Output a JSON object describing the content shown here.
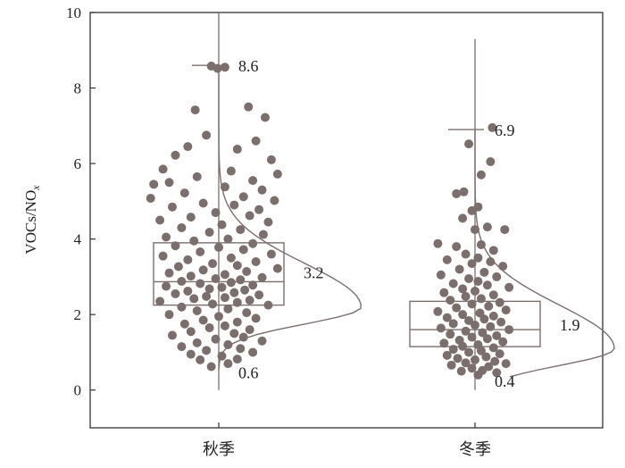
{
  "chart_data": {
    "type": "box",
    "ylabel": "VOCs/NO",
    "ylabel_sub": "x",
    "ylim": [
      -1,
      10
    ],
    "yticks": [
      "0",
      "2",
      "4",
      "6",
      "8",
      "10"
    ],
    "grid": false,
    "legend": "none",
    "point_color": "#7b6f6e",
    "line_color": "#7b6f6e",
    "categories": [
      "秋季",
      "冬季"
    ],
    "series": [
      {
        "category": "秋季",
        "q1": 2.25,
        "median": 2.87,
        "q3": 3.9,
        "whisker_low": 0.0,
        "whisker_high": 10.0,
        "max_cap": 8.6,
        "max_label": "8.6",
        "min_label": "0.6",
        "mean_label": "3.2",
        "density": {
          "peak_y": 2.2,
          "peak_extent": 2.3,
          "y_from": 0.55,
          "y_to": 8.6
        },
        "points": [
          {
            "dx": -0.12,
            "y": 8.58
          },
          {
            "dx": 0.1,
            "y": 8.55
          },
          {
            "dx": -0.02,
            "y": 8.52
          },
          {
            "dx": 0.48,
            "y": 7.5
          },
          {
            "dx": -0.38,
            "y": 7.42
          },
          {
            "dx": 0.75,
            "y": 7.22
          },
          {
            "dx": -0.2,
            "y": 6.75
          },
          {
            "dx": 0.6,
            "y": 6.6
          },
          {
            "dx": -0.5,
            "y": 6.45
          },
          {
            "dx": 0.3,
            "y": 6.38
          },
          {
            "dx": -0.7,
            "y": 6.22
          },
          {
            "dx": 0.85,
            "y": 6.1
          },
          {
            "dx": -0.9,
            "y": 5.85
          },
          {
            "dx": 0.2,
            "y": 5.8
          },
          {
            "dx": 0.95,
            "y": 5.72
          },
          {
            "dx": -0.35,
            "y": 5.65
          },
          {
            "dx": 0.55,
            "y": 5.55
          },
          {
            "dx": -0.8,
            "y": 5.5
          },
          {
            "dx": -1.05,
            "y": 5.45
          },
          {
            "dx": 0.1,
            "y": 5.38
          },
          {
            "dx": 0.7,
            "y": 5.3
          },
          {
            "dx": -0.55,
            "y": 5.22
          },
          {
            "dx": 0.4,
            "y": 5.12
          },
          {
            "dx": -1.1,
            "y": 5.08
          },
          {
            "dx": 0.9,
            "y": 5.02
          },
          {
            "dx": -0.25,
            "y": 4.95
          },
          {
            "dx": 0.25,
            "y": 4.9
          },
          {
            "dx": -0.75,
            "y": 4.85
          },
          {
            "dx": 0.65,
            "y": 4.78
          },
          {
            "dx": -0.05,
            "y": 4.7
          },
          {
            "dx": 0.5,
            "y": 4.62
          },
          {
            "dx": -0.45,
            "y": 4.58
          },
          {
            "dx": -0.95,
            "y": 4.5
          },
          {
            "dx": 0.8,
            "y": 4.45
          },
          {
            "dx": 0.05,
            "y": 4.38
          },
          {
            "dx": -0.6,
            "y": 4.3
          },
          {
            "dx": 0.35,
            "y": 4.25
          },
          {
            "dx": -0.15,
            "y": 4.18
          },
          {
            "dx": 0.72,
            "y": 4.12
          },
          {
            "dx": -0.85,
            "y": 4.05
          },
          {
            "dx": 0.15,
            "y": 4.0
          },
          {
            "dx": -0.4,
            "y": 3.95
          },
          {
            "dx": 0.55,
            "y": 3.88
          },
          {
            "dx": -0.7,
            "y": 3.82
          },
          {
            "dx": 0.0,
            "y": 3.78
          },
          {
            "dx": 0.4,
            "y": 3.72
          },
          {
            "dx": -0.3,
            "y": 3.66
          },
          {
            "dx": 0.85,
            "y": 3.6
          },
          {
            "dx": -0.9,
            "y": 3.55
          },
          {
            "dx": 0.2,
            "y": 3.5
          },
          {
            "dx": -0.5,
            "y": 3.45
          },
          {
            "dx": 0.6,
            "y": 3.4
          },
          {
            "dx": -0.1,
            "y": 3.35
          },
          {
            "dx": 0.3,
            "y": 3.3
          },
          {
            "dx": -0.65,
            "y": 3.27
          },
          {
            "dx": 0.95,
            "y": 3.22
          },
          {
            "dx": -0.25,
            "y": 3.18
          },
          {
            "dx": 0.45,
            "y": 3.14
          },
          {
            "dx": -0.8,
            "y": 3.1
          },
          {
            "dx": 0.1,
            "y": 3.06
          },
          {
            "dx": -0.45,
            "y": 3.02
          },
          {
            "dx": 0.7,
            "y": 2.98
          },
          {
            "dx": -0.05,
            "y": 2.95
          },
          {
            "dx": 0.35,
            "y": 2.92
          },
          {
            "dx": -0.6,
            "y": 2.88
          },
          {
            "dx": 0.2,
            "y": 2.85
          },
          {
            "dx": -0.3,
            "y": 2.82
          },
          {
            "dx": 0.55,
            "y": 2.78
          },
          {
            "dx": -0.85,
            "y": 2.75
          },
          {
            "dx": 0.05,
            "y": 2.72
          },
          {
            "dx": -0.15,
            "y": 2.68
          },
          {
            "dx": 0.42,
            "y": 2.65
          },
          {
            "dx": -0.5,
            "y": 2.62
          },
          {
            "dx": 0.25,
            "y": 2.58
          },
          {
            "dx": -0.7,
            "y": 2.55
          },
          {
            "dx": 0.65,
            "y": 2.52
          },
          {
            "dx": -0.2,
            "y": 2.48
          },
          {
            "dx": 0.1,
            "y": 2.45
          },
          {
            "dx": -0.4,
            "y": 2.42
          },
          {
            "dx": 0.5,
            "y": 2.38
          },
          {
            "dx": -0.95,
            "y": 2.35
          },
          {
            "dx": 0.3,
            "y": 2.32
          },
          {
            "dx": -0.1,
            "y": 2.28
          },
          {
            "dx": 0.8,
            "y": 2.25
          },
          {
            "dx": -0.6,
            "y": 2.2
          },
          {
            "dx": 0.15,
            "y": 2.15
          },
          {
            "dx": -0.35,
            "y": 2.1
          },
          {
            "dx": 0.45,
            "y": 2.05
          },
          {
            "dx": -0.8,
            "y": 2.0
          },
          {
            "dx": 0.0,
            "y": 1.95
          },
          {
            "dx": 0.6,
            "y": 1.9
          },
          {
            "dx": -0.25,
            "y": 1.85
          },
          {
            "dx": 0.3,
            "y": 1.8
          },
          {
            "dx": -0.55,
            "y": 1.75
          },
          {
            "dx": 0.1,
            "y": 1.7
          },
          {
            "dx": -0.15,
            "y": 1.65
          },
          {
            "dx": 0.5,
            "y": 1.6
          },
          {
            "dx": -0.45,
            "y": 1.55
          },
          {
            "dx": 0.25,
            "y": 1.5
          },
          {
            "dx": -0.75,
            "y": 1.45
          },
          {
            "dx": 0.4,
            "y": 1.4
          },
          {
            "dx": -0.05,
            "y": 1.35
          },
          {
            "dx": 0.7,
            "y": 1.3
          },
          {
            "dx": -0.35,
            "y": 1.25
          },
          {
            "dx": 0.15,
            "y": 1.2
          },
          {
            "dx": -0.6,
            "y": 1.15
          },
          {
            "dx": 0.35,
            "y": 1.1
          },
          {
            "dx": -0.2,
            "y": 1.05
          },
          {
            "dx": 0.55,
            "y": 1.0
          },
          {
            "dx": -0.45,
            "y": 0.95
          },
          {
            "dx": 0.05,
            "y": 0.9
          },
          {
            "dx": 0.3,
            "y": 0.82
          },
          {
            "dx": -0.3,
            "y": 0.8
          },
          {
            "dx": 0.15,
            "y": 0.7
          },
          {
            "dx": -0.12,
            "y": 0.62
          }
        ]
      },
      {
        "category": "冬季",
        "q1": 1.15,
        "median": 1.6,
        "q3": 2.35,
        "whisker_low": 0.0,
        "whisker_high": 9.3,
        "max_cap": 6.9,
        "max_label": "6.9",
        "min_label": "0.4",
        "mean_label": "1.9",
        "density": {
          "peak_y": 1.1,
          "peak_extent": 2.25,
          "y_from": 0.35,
          "y_to": 6.9
        },
        "points": [
          {
            "dx": 0.28,
            "y": 6.95
          },
          {
            "dx": -0.1,
            "y": 6.52
          },
          {
            "dx": 0.25,
            "y": 6.05
          },
          {
            "dx": 0.1,
            "y": 5.7
          },
          {
            "dx": -0.18,
            "y": 5.25
          },
          {
            "dx": -0.3,
            "y": 5.2
          },
          {
            "dx": 0.05,
            "y": 4.85
          },
          {
            "dx": -0.05,
            "y": 4.75
          },
          {
            "dx": -0.2,
            "y": 4.55
          },
          {
            "dx": 0.2,
            "y": 4.32
          },
          {
            "dx": 0.0,
            "y": 4.25
          },
          {
            "dx": 0.48,
            "y": 4.25
          },
          {
            "dx": -0.6,
            "y": 3.88
          },
          {
            "dx": 0.1,
            "y": 3.85
          },
          {
            "dx": -0.3,
            "y": 3.8
          },
          {
            "dx": 0.3,
            "y": 3.7
          },
          {
            "dx": -0.15,
            "y": 3.6
          },
          {
            "dx": 0.05,
            "y": 3.5
          },
          {
            "dx": -0.45,
            "y": 3.45
          },
          {
            "dx": 0.25,
            "y": 3.4
          },
          {
            "dx": -0.05,
            "y": 3.35
          },
          {
            "dx": 0.45,
            "y": 3.28
          },
          {
            "dx": -0.25,
            "y": 3.2
          },
          {
            "dx": 0.15,
            "y": 3.12
          },
          {
            "dx": -0.55,
            "y": 3.05
          },
          {
            "dx": 0.35,
            "y": 3.0
          },
          {
            "dx": -0.1,
            "y": 2.95
          },
          {
            "dx": 0.05,
            "y": 2.88
          },
          {
            "dx": -0.35,
            "y": 2.82
          },
          {
            "dx": 0.2,
            "y": 2.78
          },
          {
            "dx": 0.55,
            "y": 2.72
          },
          {
            "dx": -0.2,
            "y": 2.68
          },
          {
            "dx": 0.0,
            "y": 2.62
          },
          {
            "dx": -0.5,
            "y": 2.58
          },
          {
            "dx": 0.3,
            "y": 2.52
          },
          {
            "dx": -0.15,
            "y": 2.48
          },
          {
            "dx": 0.1,
            "y": 2.42
          },
          {
            "dx": -0.4,
            "y": 2.38
          },
          {
            "dx": 0.4,
            "y": 2.32
          },
          {
            "dx": -0.05,
            "y": 2.28
          },
          {
            "dx": 0.22,
            "y": 2.22
          },
          {
            "dx": -0.3,
            "y": 2.18
          },
          {
            "dx": 0.5,
            "y": 2.12
          },
          {
            "dx": -0.6,
            "y": 2.08
          },
          {
            "dx": 0.08,
            "y": 2.04
          },
          {
            "dx": -0.2,
            "y": 2.0
          },
          {
            "dx": 0.3,
            "y": 1.96
          },
          {
            "dx": -0.45,
            "y": 1.92
          },
          {
            "dx": 0.15,
            "y": 1.88
          },
          {
            "dx": -0.1,
            "y": 1.84
          },
          {
            "dx": 0.42,
            "y": 1.8
          },
          {
            "dx": -0.35,
            "y": 1.76
          },
          {
            "dx": 0.0,
            "y": 1.72
          },
          {
            "dx": 0.25,
            "y": 1.68
          },
          {
            "dx": -0.55,
            "y": 1.64
          },
          {
            "dx": 0.55,
            "y": 1.6
          },
          {
            "dx": -0.15,
            "y": 1.56
          },
          {
            "dx": 0.12,
            "y": 1.52
          },
          {
            "dx": -0.4,
            "y": 1.48
          },
          {
            "dx": 0.35,
            "y": 1.44
          },
          {
            "dx": -0.05,
            "y": 1.4
          },
          {
            "dx": 0.2,
            "y": 1.36
          },
          {
            "dx": -0.25,
            "y": 1.32
          },
          {
            "dx": 0.45,
            "y": 1.28
          },
          {
            "dx": -0.5,
            "y": 1.24
          },
          {
            "dx": 0.05,
            "y": 1.2
          },
          {
            "dx": -0.2,
            "y": 1.16
          },
          {
            "dx": 0.3,
            "y": 1.12
          },
          {
            "dx": -0.35,
            "y": 1.08
          },
          {
            "dx": 0.1,
            "y": 1.04
          },
          {
            "dx": -0.1,
            "y": 1.0
          },
          {
            "dx": 0.4,
            "y": 0.96
          },
          {
            "dx": -0.45,
            "y": 0.92
          },
          {
            "dx": 0.18,
            "y": 0.88
          },
          {
            "dx": -0.28,
            "y": 0.84
          },
          {
            "dx": 0.0,
            "y": 0.8
          },
          {
            "dx": 0.32,
            "y": 0.76
          },
          {
            "dx": -0.15,
            "y": 0.72
          },
          {
            "dx": 0.5,
            "y": 0.7
          },
          {
            "dx": -0.38,
            "y": 0.66
          },
          {
            "dx": 0.22,
            "y": 0.62
          },
          {
            "dx": -0.05,
            "y": 0.58
          },
          {
            "dx": 0.12,
            "y": 0.52
          },
          {
            "dx": -0.22,
            "y": 0.5
          },
          {
            "dx": 0.35,
            "y": 0.46
          },
          {
            "dx": 0.05,
            "y": 0.4
          }
        ]
      }
    ]
  }
}
